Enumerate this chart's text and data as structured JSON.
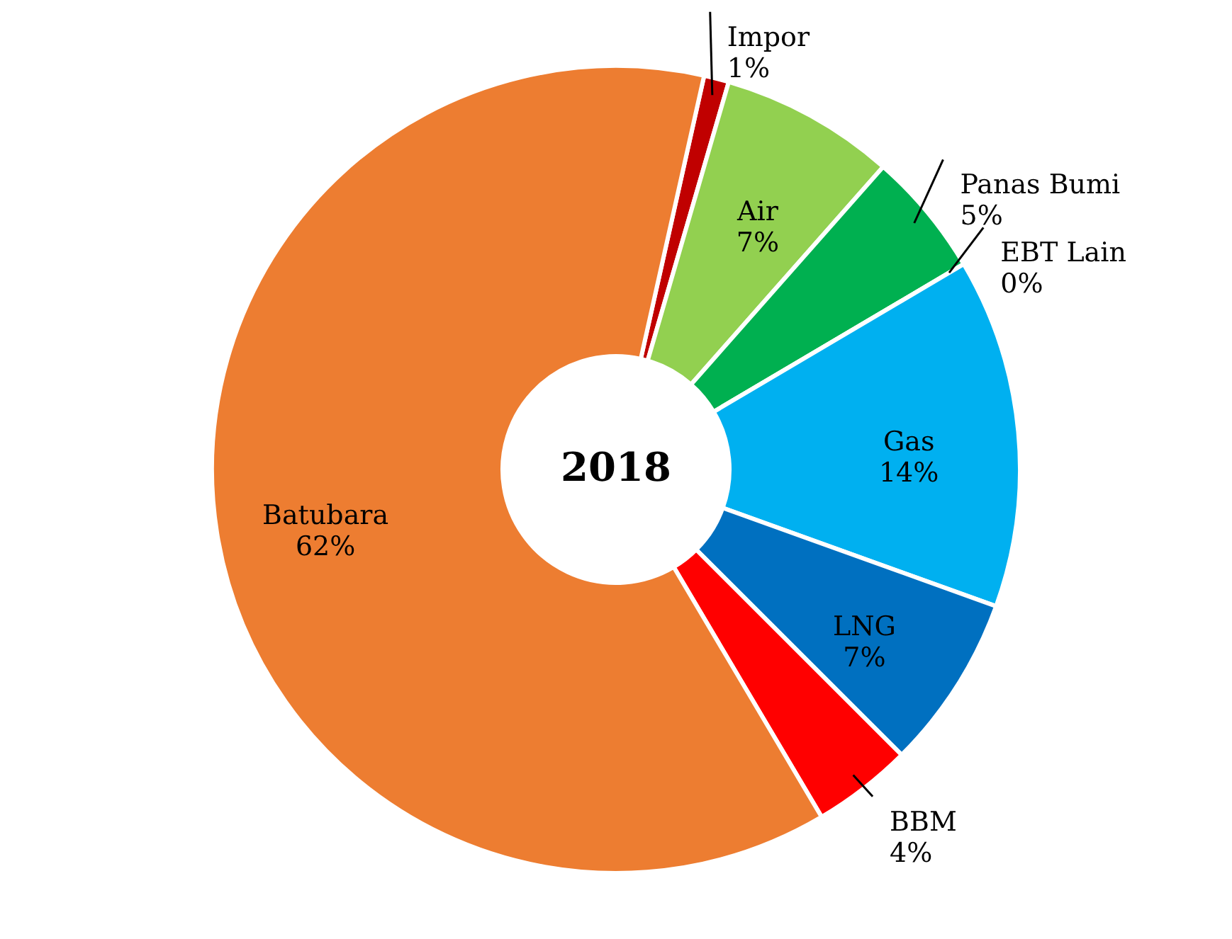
{
  "chart_data": {
    "type": "donut",
    "title": "2018",
    "categories": [
      "Impor",
      "Air",
      "Panas Bumi",
      "EBT Lain",
      "Gas",
      "LNG",
      "BBM",
      "Batubara"
    ],
    "values": [
      1,
      7,
      5,
      0,
      14,
      7,
      4,
      62
    ],
    "value_labels": [
      "1%",
      "7%",
      "5%",
      "0%",
      "14%",
      "7%",
      "4%",
      "62%"
    ],
    "colors": [
      "#c00000",
      "#92d050",
      "#00b050",
      "#ffc000",
      "#00b0f0",
      "#0070c0",
      "#ff0000",
      "#ed7d31"
    ]
  }
}
